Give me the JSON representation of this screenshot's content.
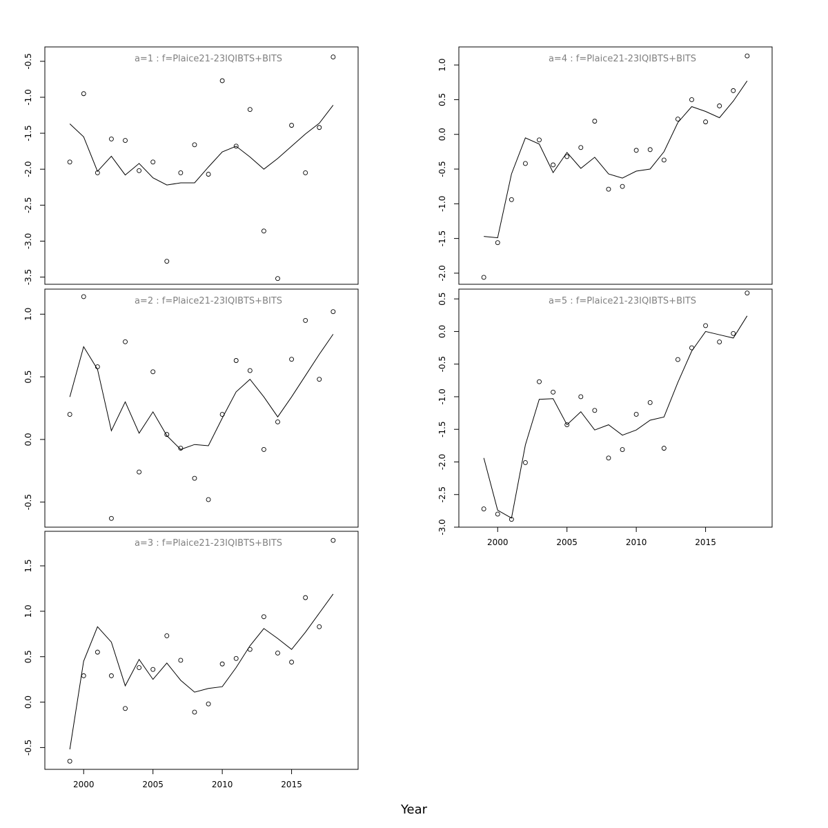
{
  "figure": {
    "xlabel": "Year"
  },
  "chart_data": [
    {
      "type": "line",
      "title": "a=1  :  f=Plaice21-23IQIBTS+BITS",
      "x": [
        1999,
        2000,
        2001,
        2002,
        2003,
        2004,
        2005,
        2006,
        2007,
        2008,
        2009,
        2010,
        2011,
        2012,
        2013,
        2014,
        2015,
        2016,
        2017,
        2018
      ],
      "series": [
        {
          "kind": "points",
          "values": [
            -1.9,
            -0.95,
            -2.05,
            -1.58,
            -1.6,
            -2.02,
            -1.9,
            -3.28,
            -2.05,
            -1.66,
            -2.07,
            -0.77,
            -1.68,
            -1.17,
            -2.86,
            -3.52,
            -1.39,
            -2.05,
            -1.42,
            -0.44
          ]
        },
        {
          "kind": "line",
          "values": [
            -1.37,
            -1.55,
            -2.03,
            -1.82,
            -2.08,
            -1.92,
            -2.12,
            -2.22,
            -2.19,
            -2.19,
            -1.97,
            -1.76,
            -1.68,
            -1.83,
            -2.0,
            -1.85,
            -1.68,
            -1.51,
            -1.36,
            -1.11
          ]
        }
      ],
      "yticks": [
        -3.5,
        -3.0,
        -2.5,
        -2.0,
        -1.5,
        -1.0,
        -0.5
      ],
      "ytick_labels": [
        "-3.5",
        "-3.0",
        "-2.5",
        "-2.0",
        "-1.5",
        "-1.0",
        "-0.5"
      ],
      "ylim": [
        -3.6,
        -0.3
      ],
      "xlim": [
        1997.2,
        2019.8
      ]
    },
    {
      "type": "line",
      "title": "a=2  :  f=Plaice21-23IQIBTS+BITS",
      "x": [
        1999,
        2000,
        2001,
        2002,
        2003,
        2004,
        2005,
        2006,
        2007,
        2008,
        2009,
        2010,
        2011,
        2012,
        2013,
        2014,
        2015,
        2016,
        2017,
        2018
      ],
      "series": [
        {
          "kind": "points",
          "values": [
            0.2,
            1.14,
            0.58,
            -0.63,
            0.78,
            -0.26,
            0.54,
            0.04,
            -0.07,
            -0.31,
            -0.48,
            0.2,
            0.63,
            0.55,
            -0.08,
            0.14,
            0.64,
            0.95,
            0.48,
            1.02
          ]
        },
        {
          "kind": "line",
          "values": [
            0.34,
            0.74,
            0.56,
            0.07,
            0.3,
            0.05,
            0.22,
            0.03,
            -0.08,
            -0.04,
            -0.05,
            0.17,
            0.38,
            0.48,
            0.34,
            0.18,
            0.34,
            0.51,
            0.68,
            0.84
          ]
        }
      ],
      "yticks": [
        -0.5,
        0.0,
        0.5,
        1.0
      ],
      "ytick_labels": [
        "-0.5",
        "0.0",
        "0.5",
        "1.0"
      ],
      "ylim": [
        -0.7,
        1.2
      ],
      "xlim": [
        1997.2,
        2019.8
      ]
    },
    {
      "type": "line",
      "title": "a=3  :  f=Plaice21-23IQIBTS+BITS",
      "x": [
        1999,
        2000,
        2001,
        2002,
        2003,
        2004,
        2005,
        2006,
        2007,
        2008,
        2009,
        2010,
        2011,
        2012,
        2013,
        2014,
        2015,
        2016,
        2017,
        2018
      ],
      "series": [
        {
          "kind": "points",
          "values": [
            -0.65,
            0.29,
            0.55,
            0.29,
            -0.07,
            0.38,
            0.36,
            0.73,
            0.46,
            -0.11,
            -0.02,
            0.42,
            0.48,
            0.58,
            0.94,
            0.54,
            0.44,
            1.15,
            0.83,
            1.78
          ]
        },
        {
          "kind": "line",
          "values": [
            -0.52,
            0.45,
            0.83,
            0.66,
            0.18,
            0.47,
            0.25,
            0.43,
            0.24,
            0.11,
            0.15,
            0.17,
            0.38,
            0.62,
            0.81,
            0.7,
            0.58,
            0.77,
            0.98,
            1.19
          ]
        }
      ],
      "yticks": [
        -0.5,
        0.0,
        0.5,
        1.0,
        1.5
      ],
      "ytick_labels": [
        "-0.5",
        "0.0",
        "0.5",
        "1.0",
        "1.5"
      ],
      "ylim": [
        -0.74,
        1.88
      ],
      "xlim": [
        1997.2,
        2019.8
      ],
      "xticks": [
        2000,
        2005,
        2010,
        2015
      ],
      "xtick_labels": [
        "2000",
        "2005",
        "2010",
        "2015"
      ]
    },
    {
      "type": "line",
      "title": "a=4  :  f=Plaice21-23IQIBTS+BITS",
      "x": [
        1999,
        2000,
        2001,
        2002,
        2003,
        2004,
        2005,
        2006,
        2007,
        2008,
        2009,
        2010,
        2011,
        2012,
        2013,
        2014,
        2015,
        2016,
        2017,
        2018
      ],
      "series": [
        {
          "kind": "points",
          "values": [
            -2.06,
            -1.56,
            -0.94,
            -0.42,
            -0.08,
            -0.44,
            -0.32,
            -0.19,
            0.19,
            -0.79,
            -0.75,
            -0.23,
            -0.22,
            -0.37,
            0.22,
            0.5,
            0.18,
            0.41,
            0.63,
            1.13
          ]
        },
        {
          "kind": "line",
          "values": [
            -1.47,
            -1.49,
            -0.57,
            -0.05,
            -0.14,
            -0.55,
            -0.26,
            -0.49,
            -0.33,
            -0.57,
            -0.63,
            -0.53,
            -0.5,
            -0.25,
            0.17,
            0.4,
            0.33,
            0.24,
            0.48,
            0.77
          ]
        }
      ],
      "yticks": [
        -2.0,
        -1.5,
        -1.0,
        -0.5,
        0.0,
        0.5,
        1.0
      ],
      "ytick_labels": [
        "-2.0",
        "-1.5",
        "-1.0",
        "-0.5",
        "0.0",
        "0.5",
        "1.0"
      ],
      "ylim": [
        -2.16,
        1.26
      ],
      "xlim": [
        1997.2,
        2019.8
      ]
    },
    {
      "type": "line",
      "title": "a=5  :  f=Plaice21-23IQIBTS+BITS",
      "x": [
        1999,
        2000,
        2001,
        2002,
        2003,
        2004,
        2005,
        2006,
        2007,
        2008,
        2009,
        2010,
        2011,
        2012,
        2013,
        2014,
        2015,
        2016,
        2017,
        2018
      ],
      "series": [
        {
          "kind": "points",
          "values": [
            -2.72,
            -2.8,
            -2.88,
            -2.01,
            -0.77,
            -0.93,
            -1.43,
            -1.0,
            -1.21,
            -1.94,
            -1.81,
            -1.27,
            -1.09,
            -1.79,
            -0.43,
            -0.25,
            0.09,
            -0.16,
            -0.03,
            0.59
          ]
        },
        {
          "kind": "line",
          "values": [
            -1.94,
            -2.74,
            -2.86,
            -1.74,
            -1.04,
            -1.03,
            -1.43,
            -1.23,
            -1.51,
            -1.43,
            -1.59,
            -1.51,
            -1.36,
            -1.31,
            -0.78,
            -0.3,
            0.0,
            -0.05,
            -0.1,
            0.24
          ]
        }
      ],
      "yticks": [
        -3.0,
        -2.5,
        -2.0,
        -1.5,
        -1.0,
        -0.5,
        0.0,
        0.5
      ],
      "ytick_labels": [
        "-3.0",
        "-2.5",
        "-2.0",
        "-1.5",
        "-1.0",
        "-0.5",
        "0.0",
        "0.5"
      ],
      "ylim": [
        -3.0,
        0.65
      ],
      "xlim": [
        1997.2,
        2019.8
      ],
      "xticks": [
        2000,
        2005,
        2010,
        2015
      ],
      "xtick_labels": [
        "2000",
        "2005",
        "2010",
        "2015"
      ]
    }
  ]
}
